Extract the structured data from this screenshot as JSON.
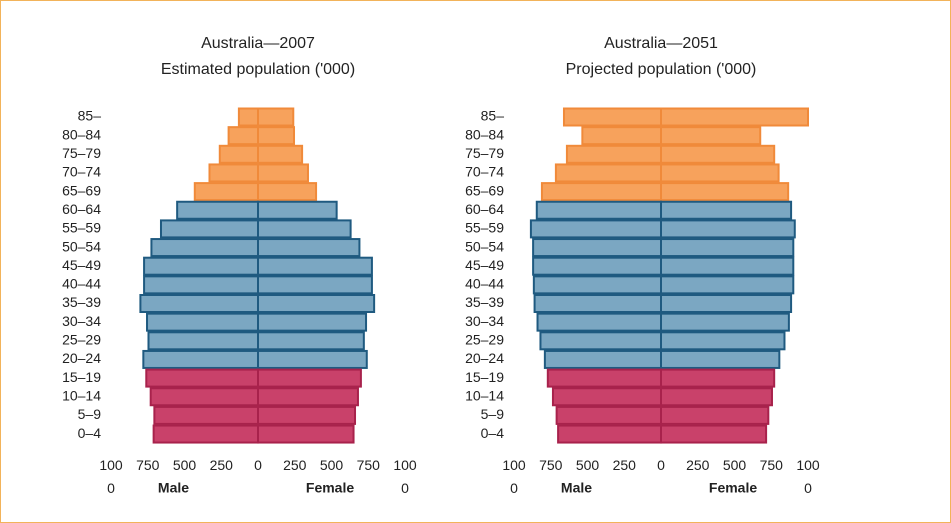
{
  "chart_data": [
    {
      "type": "pyramid",
      "title": "Australia—2007",
      "subtitle": "Estimated population ('000)",
      "categories": [
        "85–",
        "80–84",
        "75–79",
        "70–74",
        "65–69",
        "60–64",
        "55–59",
        "50–54",
        "45–49",
        "40–44",
        "35–39",
        "30–34",
        "25–29",
        "20–24",
        "15–19",
        "10–14",
        "5–9",
        "0–4"
      ],
      "colors": [
        "#f7a25c",
        "#f7a25c",
        "#f7a25c",
        "#f7a25c",
        "#f7a25c",
        "#7ba7c2",
        "#7ba7c2",
        "#7ba7c2",
        "#7ba7c2",
        "#7ba7c2",
        "#7ba7c2",
        "#7ba7c2",
        "#7ba7c2",
        "#7ba7c2",
        "#c9416a",
        "#c9416a",
        "#c9416a",
        "#c9416a"
      ],
      "edge_colors": [
        "#f08a3a",
        "#f08a3a",
        "#f08a3a",
        "#f08a3a",
        "#f08a3a",
        "#1f5a80",
        "#1f5a80",
        "#1f5a80",
        "#1f5a80",
        "#1f5a80",
        "#1f5a80",
        "#1f5a80",
        "#1f5a80",
        "#1f5a80",
        "#a8224c",
        "#a8224c",
        "#a8224c",
        "#a8224c"
      ],
      "series": [
        {
          "name": "Male",
          "values": [
            130,
            200,
            260,
            330,
            430,
            550,
            660,
            725,
            775,
            775,
            800,
            755,
            745,
            780,
            760,
            730,
            705,
            710
          ]
        },
        {
          "name": "Female",
          "values": [
            240,
            245,
            300,
            340,
            395,
            535,
            630,
            690,
            775,
            775,
            790,
            735,
            720,
            740,
            700,
            680,
            660,
            650
          ]
        }
      ],
      "xlim": [
        -1000,
        1000
      ],
      "xticks": [
        {
          "value": -1000,
          "label": "1000"
        },
        {
          "value": -750,
          "label": "750"
        },
        {
          "value": -500,
          "label": "500"
        },
        {
          "value": -250,
          "label": "250"
        },
        0,
        250,
        500,
        750,
        1000
      ]
    },
    {
      "type": "pyramid",
      "title": "Australia—2051",
      "subtitle": "Projected population ('000)",
      "categories": [
        "85–",
        "80–84",
        "75–79",
        "70–74",
        "65–69",
        "60–64",
        "55–59",
        "50–54",
        "45–49",
        "40–44",
        "35–39",
        "30–34",
        "25–29",
        "20–24",
        "15–19",
        "10–14",
        "5–9",
        "0–4"
      ],
      "colors": [
        "#f7a25c",
        "#f7a25c",
        "#f7a25c",
        "#f7a25c",
        "#f7a25c",
        "#7ba7c2",
        "#7ba7c2",
        "#7ba7c2",
        "#7ba7c2",
        "#7ba7c2",
        "#7ba7c2",
        "#7ba7c2",
        "#7ba7c2",
        "#7ba7c2",
        "#c9416a",
        "#c9416a",
        "#c9416a",
        "#c9416a"
      ],
      "edge_colors": [
        "#f08a3a",
        "#f08a3a",
        "#f08a3a",
        "#f08a3a",
        "#f08a3a",
        "#1f5a80",
        "#1f5a80",
        "#1f5a80",
        "#1f5a80",
        "#1f5a80",
        "#1f5a80",
        "#1f5a80",
        "#1f5a80",
        "#1f5a80",
        "#a8224c",
        "#a8224c",
        "#a8224c",
        "#a8224c"
      ],
      "series": [
        {
          "name": "Male",
          "values": [
            660,
            535,
            640,
            715,
            810,
            845,
            885,
            870,
            870,
            865,
            860,
            840,
            820,
            790,
            770,
            735,
            710,
            700
          ]
        },
        {
          "name": "Female",
          "values": [
            1000,
            675,
            770,
            800,
            865,
            885,
            910,
            900,
            900,
            900,
            885,
            870,
            840,
            805,
            770,
            755,
            730,
            715
          ]
        }
      ],
      "xlim": [
        -1000,
        1000
      ],
      "xticks": [
        {
          "value": -1000,
          "label": "1000"
        },
        {
          "value": -750,
          "label": "750"
        },
        {
          "value": -500,
          "label": "500"
        },
        {
          "value": -250,
          "label": "250"
        },
        0,
        250,
        500,
        750,
        1000
      ]
    }
  ]
}
